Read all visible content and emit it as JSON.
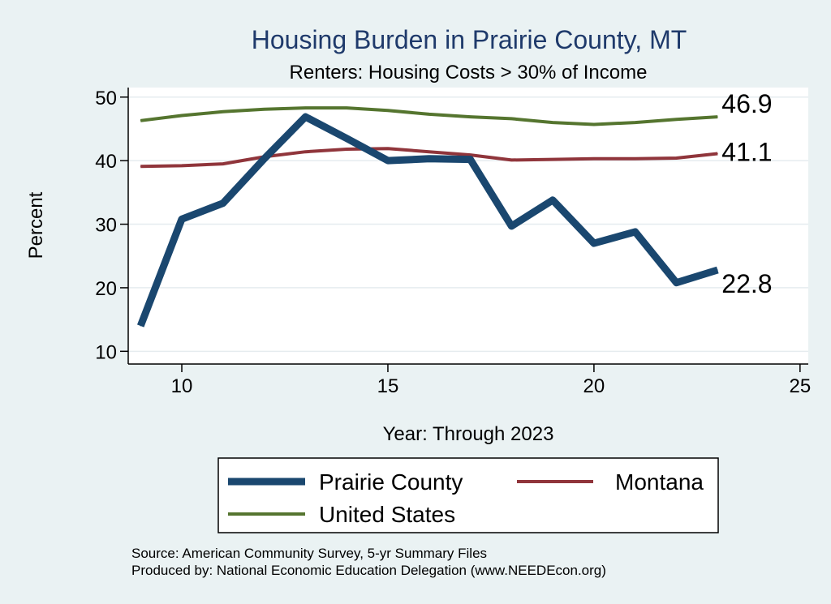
{
  "chart_data": {
    "type": "line",
    "title": "Housing Burden in Prairie County, MT",
    "subtitle": "Renters: Housing Costs > 30% of Income",
    "xlabel": "Year: Through 2023",
    "ylabel": "Percent",
    "xlim": [
      8.7,
      25.2
    ],
    "ylim": [
      8,
      51.5
    ],
    "xticks": [
      10,
      15,
      20,
      25
    ],
    "yticks": [
      10,
      20,
      30,
      40,
      50
    ],
    "series": [
      {
        "name": "Prairie County",
        "color": "#1a476f",
        "end_label": "22.8",
        "x": [
          9,
          10,
          11,
          12,
          13,
          14,
          15,
          16,
          17,
          18,
          19,
          20,
          21,
          22,
          23
        ],
        "values": [
          14.0,
          30.8,
          33.3,
          40.3,
          46.9,
          43.5,
          40.0,
          40.3,
          40.2,
          29.7,
          33.8,
          27.0,
          28.8,
          20.8,
          22.8
        ]
      },
      {
        "name": "Montana",
        "color": "#90353b",
        "end_label": "41.1",
        "x": [
          9,
          10,
          11,
          12,
          13,
          14,
          15,
          16,
          17,
          18,
          19,
          20,
          21,
          22,
          23
        ],
        "values": [
          39.1,
          39.2,
          39.5,
          40.6,
          41.4,
          41.8,
          41.9,
          41.4,
          40.9,
          40.1,
          40.2,
          40.3,
          40.3,
          40.4,
          41.1
        ]
      },
      {
        "name": "United States",
        "color": "#55752f",
        "end_label": "46.9",
        "x": [
          9,
          10,
          11,
          12,
          13,
          14,
          15,
          16,
          17,
          18,
          19,
          20,
          21,
          22,
          23
        ],
        "values": [
          46.3,
          47.1,
          47.7,
          48.1,
          48.3,
          48.3,
          47.9,
          47.3,
          46.9,
          46.6,
          46.0,
          45.7,
          46.0,
          46.5,
          46.9
        ]
      }
    ],
    "legend": [
      {
        "name": "Prairie County",
        "color": "#1a476f"
      },
      {
        "name": "Montana",
        "color": "#90353b"
      },
      {
        "name": "United States",
        "color": "#55752f"
      }
    ],
    "notes": [
      "Source: American Community Survey, 5-yr Summary Files",
      "Produced by: National Economic Education Delegation (www.NEEDEcon.org)"
    ]
  }
}
